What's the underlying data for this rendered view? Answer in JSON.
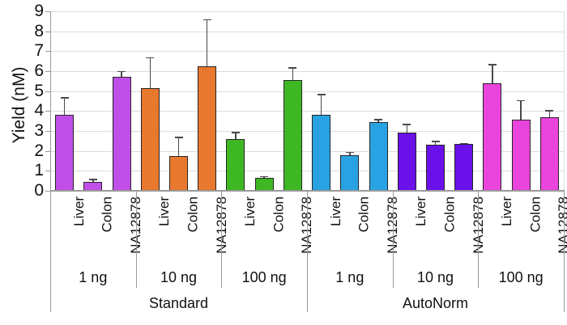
{
  "chart_data": {
    "type": "bar",
    "title": "",
    "ylabel": "Yield (nM)",
    "xlabel": "",
    "ylim": [
      0,
      9
    ],
    "yticks": [
      0,
      1,
      2,
      3,
      4,
      5,
      6,
      7,
      8,
      9
    ],
    "grid": true,
    "legend": "none",
    "error_bars": "upper only",
    "colors": {
      "grid": "#dcdcdc",
      "axis": "#9a9a9a",
      "bar_border": "#262626",
      "error_bar": "#4a4a4a",
      "text": "#111111",
      "background": "#ffffff"
    },
    "methods": [
      {
        "label": "Standard",
        "amounts": [
          {
            "label": "1 ng",
            "color": "#c04fe8",
            "bars": [
              {
                "label": "Liver",
                "value": 3.8,
                "error": 0.9
              },
              {
                "label": "Colon",
                "value": 0.45,
                "error": 0.15
              },
              {
                "label": "NA12878",
                "value": 5.7,
                "error": 0.3
              }
            ]
          },
          {
            "label": "10 ng",
            "color": "#e8782e",
            "bars": [
              {
                "label": "Liver",
                "value": 5.15,
                "error": 1.55
              },
              {
                "label": "Colon",
                "value": 1.75,
                "error": 0.95
              },
              {
                "label": "NA12878",
                "value": 6.25,
                "error": 2.35
              }
            ]
          },
          {
            "label": "100 ng",
            "color": "#3db822",
            "bars": [
              {
                "label": "Liver",
                "value": 2.6,
                "error": 0.35
              },
              {
                "label": "Colon",
                "value": 0.65,
                "error": 0.08
              },
              {
                "label": "NA12878",
                "value": 5.55,
                "error": 0.65
              }
            ]
          }
        ]
      },
      {
        "label": "AutoNorm",
        "amounts": [
          {
            "label": "1 ng",
            "color": "#28a2e2",
            "bars": [
              {
                "label": "Liver",
                "value": 3.8,
                "error": 1.05
              },
              {
                "label": "Colon",
                "value": 1.8,
                "error": 0.15
              },
              {
                "label": "NA12878",
                "value": 3.45,
                "error": 0.15
              }
            ]
          },
          {
            "label": "10 ng",
            "color": "#6a10e8",
            "bars": [
              {
                "label": "Liver",
                "value": 2.9,
                "error": 0.45
              },
              {
                "label": "Colon",
                "value": 2.3,
                "error": 0.2
              },
              {
                "label": "NA12878",
                "value": 2.35,
                "error": 0.05
              }
            ]
          },
          {
            "label": "100 ng",
            "color": "#e944db",
            "bars": [
              {
                "label": "Liver",
                "value": 5.4,
                "error": 0.95
              },
              {
                "label": "Colon",
                "value": 3.55,
                "error": 1.0
              },
              {
                "label": "NA12878",
                "value": 3.7,
                "error": 0.35
              }
            ]
          }
        ]
      }
    ]
  }
}
